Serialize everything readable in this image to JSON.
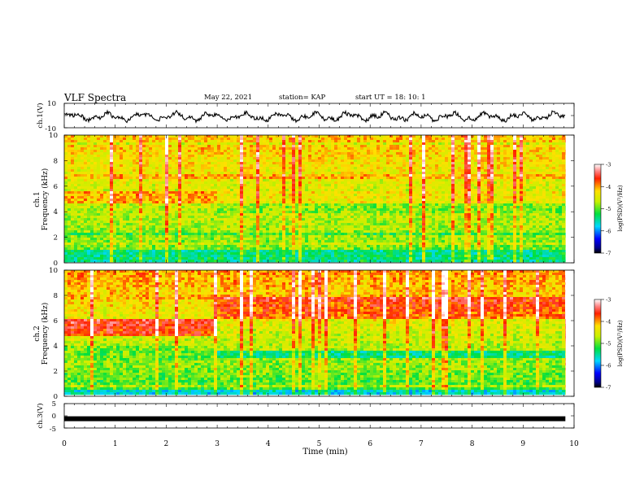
{
  "header": {
    "title": "VLF Spectra",
    "date": "May 22, 2021",
    "station": "station= KAP",
    "start": "start  UT =   18: 10: 1"
  },
  "chart_data": [
    {
      "type": "line",
      "panel": "ch1-waveform",
      "ylabel": "ch.1(V)",
      "yticks": [
        "10",
        "-10"
      ],
      "ylim": [
        -10,
        10
      ],
      "xlim": [
        0,
        10
      ],
      "x_extent": [
        0,
        9.83
      ],
      "pattern": "noisy oscillation around -1 V, amplitude about 4 V"
    },
    {
      "type": "heatmap",
      "panel": "ch1-spectrogram",
      "ylabel": "ch.1 Frequency (kHz)",
      "yticks": [
        "0",
        "2",
        "4",
        "6",
        "8",
        "10"
      ],
      "ylim": [
        0,
        10
      ],
      "xlim": [
        0,
        10
      ],
      "x_extent": [
        0,
        9.83
      ],
      "step_change_min": 2.95,
      "colorbar": {
        "label": "log(PSD)(V²/Hz)",
        "ticks": [
          "-3",
          "-4",
          "-5",
          "-6",
          "-7"
        ],
        "range": [
          -7,
          -3
        ]
      }
    },
    {
      "type": "heatmap",
      "panel": "ch2-spectrogram",
      "ylabel": "ch.2 Frequency (kHz)",
      "yticks": [
        "0",
        "2",
        "4",
        "6",
        "8",
        "10"
      ],
      "ylim": [
        0,
        10
      ],
      "xlim": [
        0,
        10
      ],
      "x_extent": [
        0,
        9.83
      ],
      "step_change_min": 2.95,
      "colorbar": {
        "label": "log(PSD)(V²/Hz)",
        "ticks": [
          "-3",
          "-4",
          "-5",
          "-6",
          "-7"
        ],
        "range": [
          -7,
          -3
        ]
      }
    },
    {
      "type": "line",
      "panel": "ch3-waveform",
      "ylabel": "ch.3(V)",
      "yticks": [
        "5",
        "0",
        "-5"
      ],
      "ylim": [
        -5,
        5
      ],
      "xlim": [
        0,
        10
      ],
      "x_extent": [
        0,
        9.83
      ],
      "value": -1.2
    }
  ],
  "xaxis": {
    "label": "Time (min)",
    "ticks": [
      "0",
      "1",
      "2",
      "3",
      "4",
      "5",
      "6",
      "7",
      "8",
      "9",
      "10"
    ]
  }
}
